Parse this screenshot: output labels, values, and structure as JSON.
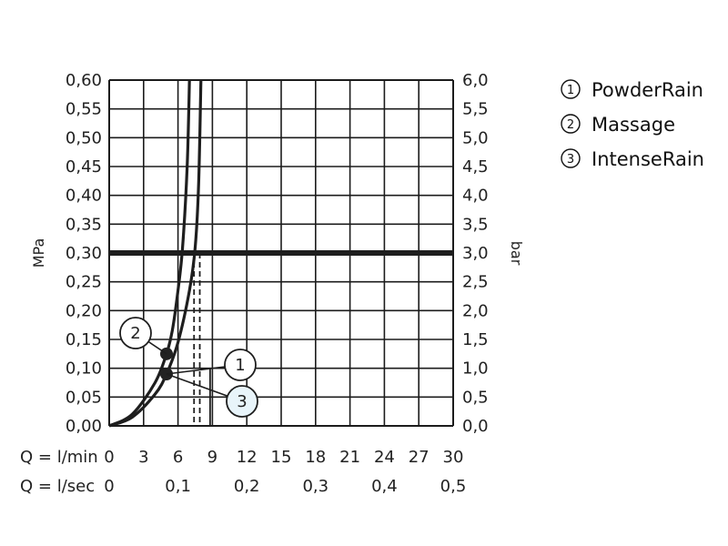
{
  "chart_data": {
    "type": "line",
    "ylabel_left": "MPa",
    "ylabel_right": "bar",
    "xlabel_lmin": "Q = l/min",
    "xlabel_lsec": "Q = l/sec",
    "ylim": [
      0,
      0.6
    ],
    "xlim": [
      0,
      30
    ],
    "grid": true,
    "legend_position": "top-right",
    "y_ticks_left": [
      "0,00",
      "0,05",
      "0,10",
      "0,15",
      "0,20",
      "0,25",
      "0,30",
      "0,35",
      "0,40",
      "0,45",
      "0,50",
      "0,55",
      "0,60"
    ],
    "y_ticks_right": [
      "0,0",
      "0,5",
      "1,0",
      "1,5",
      "2,0",
      "2,5",
      "3,0",
      "3,5",
      "4,0",
      "4,5",
      "5,0",
      "5,5",
      "6,0"
    ],
    "x_ticks_lmin": [
      "0",
      "3",
      "6",
      "9",
      "12",
      "15",
      "18",
      "21",
      "24",
      "27",
      "30"
    ],
    "x_ticks_lsec": [
      "0",
      "0,1",
      "0,2",
      "0,3",
      "0,4",
      "0,5"
    ],
    "reference_pressure": 0.3,
    "series": [
      {
        "name": "PowderRain",
        "number": "1",
        "points": [
          [
            0,
            0
          ],
          [
            2,
            0.015
          ],
          [
            4,
            0.055
          ],
          [
            5,
            0.09
          ],
          [
            6,
            0.145
          ],
          [
            7,
            0.235
          ],
          [
            7.5,
            0.31
          ],
          [
            7.8,
            0.42
          ],
          [
            8,
            0.6
          ]
        ]
      },
      {
        "name": "Massage",
        "number": "2",
        "points": [
          [
            0,
            0
          ],
          [
            2,
            0.02
          ],
          [
            4,
            0.075
          ],
          [
            5,
            0.125
          ],
          [
            5.5,
            0.165
          ],
          [
            6,
            0.235
          ],
          [
            6.4,
            0.31
          ],
          [
            6.8,
            0.45
          ],
          [
            7,
            0.6
          ]
        ]
      },
      {
        "name": "IntenseRain",
        "number": "3",
        "points": [
          [
            0,
            0
          ],
          [
            2,
            0.015
          ],
          [
            4,
            0.055
          ],
          [
            5,
            0.09
          ],
          [
            6,
            0.145
          ],
          [
            7,
            0.235
          ],
          [
            7.5,
            0.31
          ],
          [
            7.8,
            0.42
          ],
          [
            8,
            0.6
          ]
        ]
      }
    ],
    "markers": [
      {
        "series": "2",
        "x": 5.0,
        "y": 0.125
      },
      {
        "series": "1",
        "x": 5.0,
        "y": 0.09
      }
    ],
    "dashed_flow_lines": [
      7.4,
      7.9
    ],
    "solid_flow_line": 8.8,
    "callouts": [
      {
        "num": "2",
        "target_x": 5.0,
        "target_y": 0.125
      },
      {
        "num": "1",
        "target_x": 5.0,
        "target_y": 0.09
      },
      {
        "num": "3",
        "target_x": 5.0,
        "target_y": 0.09
      }
    ]
  },
  "colors": {
    "grid": "#1c1c1c",
    "curve": "#1e1e1e",
    "reference": "#1e1e1e",
    "callout3_fill": "#e8f4fa"
  }
}
